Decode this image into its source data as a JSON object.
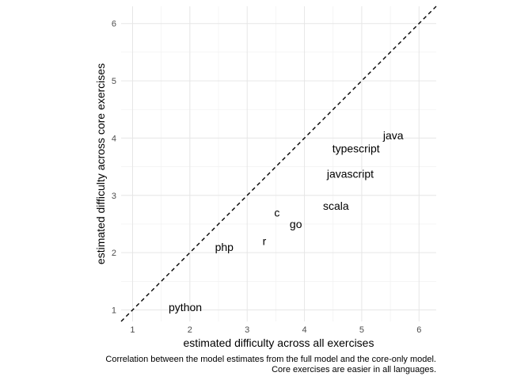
{
  "chart_data": {
    "type": "scatter",
    "title": "",
    "xlabel": "estimated difficulty across all exercises",
    "ylabel": "estimated difficulty across core exercises",
    "xlim": [
      0.8,
      6.3
    ],
    "ylim": [
      0.8,
      6.3
    ],
    "xticks": [
      "1",
      "2",
      "3",
      "4",
      "5",
      "6"
    ],
    "yticks": [
      "1",
      "2",
      "3",
      "4",
      "5",
      "6"
    ],
    "grid": true,
    "reference_line": {
      "type": "identity",
      "style": "dashed",
      "color": "#000000"
    },
    "points": [
      {
        "label": "python",
        "x": 1.92,
        "y": 1.05
      },
      {
        "label": "php",
        "x": 2.6,
        "y": 2.1
      },
      {
        "label": "r",
        "x": 3.3,
        "y": 2.2
      },
      {
        "label": "c",
        "x": 3.52,
        "y": 2.7
      },
      {
        "label": "go",
        "x": 3.85,
        "y": 2.5
      },
      {
        "label": "scala",
        "x": 4.55,
        "y": 2.82
      },
      {
        "label": "javascript",
        "x": 4.8,
        "y": 3.38
      },
      {
        "label": "typescript",
        "x": 4.9,
        "y": 3.82
      },
      {
        "label": "java",
        "x": 5.55,
        "y": 4.05
      }
    ],
    "caption": [
      "Correlation between the model estimates from the full model and the core-only model.",
      "Core exercises are easier in all languages."
    ]
  }
}
